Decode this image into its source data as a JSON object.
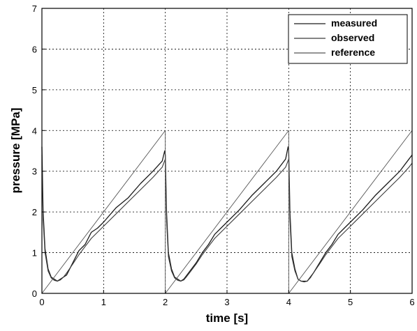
{
  "chart_data": {
    "type": "line",
    "title": "",
    "xlabel": "time [s]",
    "ylabel": "pressure [MPa]",
    "xlim": [
      0,
      6
    ],
    "ylim": [
      0,
      7
    ],
    "x_ticks": [
      0,
      1,
      2,
      3,
      4,
      5,
      6
    ],
    "y_ticks": [
      0,
      1,
      2,
      3,
      4,
      5,
      6,
      7
    ],
    "grid": true,
    "legend_position": "top-right",
    "colors": {
      "measured": "#1a1a1a",
      "observed": "#3a3a3a",
      "reference": "#555555"
    },
    "series": [
      {
        "name": "measured",
        "x": [
          0.0,
          0.02,
          0.05,
          0.1,
          0.15,
          0.2,
          0.25,
          0.3,
          0.35,
          0.4,
          0.5,
          0.6,
          0.7,
          0.8,
          0.9,
          1.0,
          1.2,
          1.4,
          1.6,
          1.8,
          1.95,
          1.99,
          2.0,
          2.02,
          2.05,
          2.1,
          2.15,
          2.2,
          2.25,
          2.3,
          2.35,
          2.4,
          2.5,
          2.6,
          2.7,
          2.8,
          2.9,
          3.0,
          3.2,
          3.4,
          3.6,
          3.8,
          3.95,
          3.99,
          4.0,
          4.02,
          4.05,
          4.1,
          4.15,
          4.2,
          4.25,
          4.3,
          4.35,
          4.4,
          4.5,
          4.6,
          4.7,
          4.8,
          4.9,
          5.0,
          5.2,
          5.4,
          5.6,
          5.8,
          5.95,
          6.0
        ],
        "y": [
          3.6,
          2.0,
          1.1,
          0.6,
          0.4,
          0.35,
          0.3,
          0.35,
          0.4,
          0.45,
          0.75,
          1.05,
          1.2,
          1.5,
          1.6,
          1.75,
          2.1,
          2.35,
          2.7,
          3.0,
          3.25,
          3.5,
          3.4,
          2.0,
          1.0,
          0.6,
          0.4,
          0.35,
          0.3,
          0.35,
          0.45,
          0.55,
          0.75,
          1.0,
          1.2,
          1.45,
          1.6,
          1.75,
          2.05,
          2.4,
          2.7,
          3.0,
          3.3,
          3.6,
          3.5,
          2.0,
          1.0,
          0.6,
          0.35,
          0.3,
          0.3,
          0.3,
          0.4,
          0.5,
          0.75,
          1.0,
          1.2,
          1.45,
          1.6,
          1.75,
          2.05,
          2.4,
          2.7,
          3.0,
          3.3,
          3.4
        ]
      },
      {
        "name": "observed",
        "x": [
          0.0,
          0.02,
          0.05,
          0.1,
          0.15,
          0.2,
          0.25,
          0.3,
          0.35,
          0.4,
          0.5,
          0.6,
          0.7,
          0.8,
          0.9,
          1.0,
          1.2,
          1.4,
          1.6,
          1.8,
          1.95,
          2.0,
          2.02,
          2.05,
          2.1,
          2.15,
          2.2,
          2.25,
          2.3,
          2.35,
          2.4,
          2.5,
          2.6,
          2.7,
          2.8,
          2.9,
          3.0,
          3.2,
          3.4,
          3.6,
          3.8,
          3.95,
          4.0,
          4.02,
          4.05,
          4.1,
          4.15,
          4.2,
          4.25,
          4.3,
          4.35,
          4.4,
          4.5,
          4.6,
          4.7,
          4.8,
          4.9,
          5.0,
          5.2,
          5.4,
          5.6,
          5.8,
          5.95,
          6.0
        ],
        "y": [
          3.4,
          1.8,
          1.0,
          0.55,
          0.38,
          0.32,
          0.3,
          0.33,
          0.4,
          0.5,
          0.72,
          0.95,
          1.15,
          1.35,
          1.5,
          1.65,
          1.95,
          2.25,
          2.55,
          2.85,
          3.1,
          3.3,
          1.8,
          0.9,
          0.55,
          0.38,
          0.32,
          0.3,
          0.33,
          0.42,
          0.52,
          0.72,
          0.95,
          1.15,
          1.35,
          1.5,
          1.65,
          1.95,
          2.25,
          2.55,
          2.85,
          3.1,
          3.3,
          1.8,
          0.9,
          0.55,
          0.35,
          0.3,
          0.28,
          0.3,
          0.38,
          0.5,
          0.72,
          0.95,
          1.15,
          1.35,
          1.5,
          1.65,
          1.95,
          2.25,
          2.55,
          2.85,
          3.1,
          3.2
        ]
      },
      {
        "name": "reference",
        "x": [
          0,
          2,
          2,
          4,
          4,
          6
        ],
        "y": [
          0,
          4,
          0,
          4,
          0,
          4
        ]
      }
    ]
  }
}
